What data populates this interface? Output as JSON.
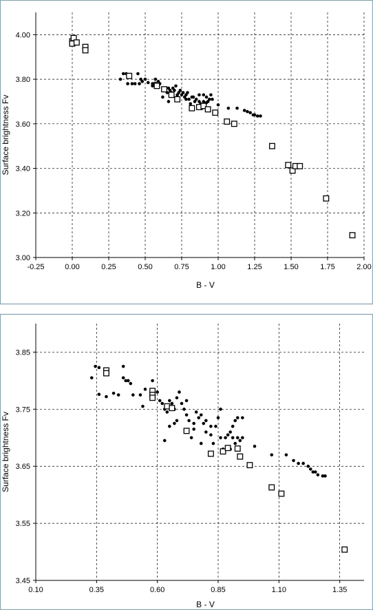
{
  "chart_data": [
    {
      "type": "scatter",
      "title": "",
      "xlabel": "B - V",
      "ylabel": "Surface brightness Fv",
      "xlim": [
        -0.25,
        2.0
      ],
      "ylim": [
        3.0,
        4.1
      ],
      "x_ticks": [
        "-0.25",
        "0.00",
        "0.25",
        "0.50",
        "0.75",
        "1.00",
        "1.25",
        "1.50",
        "1.75",
        "2.00"
      ],
      "y_ticks": [
        "3.00",
        "3.20",
        "3.40",
        "3.60",
        "3.80",
        "4.00"
      ],
      "grid": true,
      "series": [
        {
          "marker": "dot",
          "points": [
            [
              0.33,
              3.8
            ],
            [
              0.35,
              3.825
            ],
            [
              0.37,
              3.825
            ],
            [
              0.4,
              3.82
            ],
            [
              0.45,
              3.825
            ],
            [
              0.47,
              3.8
            ],
            [
              0.48,
              3.79
            ],
            [
              0.5,
              3.8
            ],
            [
              0.38,
              3.78
            ],
            [
              0.41,
              3.78
            ],
            [
              0.43,
              3.78
            ],
            [
              0.46,
              3.78
            ],
            [
              0.52,
              3.785
            ],
            [
              0.55,
              3.78
            ],
            [
              0.57,
              3.8
            ],
            [
              0.58,
              3.77
            ],
            [
              0.6,
              3.78
            ],
            [
              0.62,
              3.76
            ],
            [
              0.63,
              3.75
            ],
            [
              0.64,
              3.76
            ],
            [
              0.65,
              3.74
            ],
            [
              0.66,
              3.76
            ],
            [
              0.67,
              3.75
            ],
            [
              0.68,
              3.74
            ],
            [
              0.7,
              3.75
            ],
            [
              0.72,
              3.73
            ],
            [
              0.73,
              3.74
            ],
            [
              0.75,
              3.73
            ],
            [
              0.77,
              3.72
            ],
            [
              0.78,
              3.73
            ],
            [
              0.8,
              3.71
            ],
            [
              0.82,
              3.72
            ],
            [
              0.84,
              3.7
            ],
            [
              0.85,
              3.71
            ],
            [
              0.87,
              3.7
            ],
            [
              0.88,
              3.69
            ],
            [
              0.9,
              3.7
            ],
            [
              0.91,
              3.69
            ],
            [
              0.92,
              3.72
            ],
            [
              0.93,
              3.7
            ],
            [
              0.95,
              3.73
            ],
            [
              0.96,
              3.71
            ],
            [
              0.66,
              3.7
            ],
            [
              0.72,
              3.72
            ],
            [
              0.78,
              3.71
            ],
            [
              0.81,
              3.69
            ],
            [
              0.86,
              3.68
            ],
            [
              0.89,
              3.67
            ],
            [
              0.62,
              3.72
            ],
            [
              0.69,
              3.76
            ],
            [
              0.74,
              3.75
            ],
            [
              0.83,
              3.72
            ],
            [
              0.92,
              3.695
            ],
            [
              0.94,
              3.71
            ],
            [
              1.0,
              3.685
            ],
            [
              1.07,
              3.67
            ],
            [
              1.13,
              3.67
            ],
            [
              1.18,
              3.66
            ],
            [
              1.22,
              3.65
            ],
            [
              1.24,
              3.64
            ],
            [
              1.25,
              3.64
            ],
            [
              1.27,
              3.635
            ],
            [
              1.29,
              3.635
            ],
            [
              1.2,
              3.655
            ],
            [
              0.55,
              3.77
            ],
            [
              0.59,
              3.79
            ],
            [
              0.71,
              3.77
            ],
            [
              0.76,
              3.74
            ],
            [
              0.79,
              3.74
            ],
            [
              0.87,
              3.73
            ],
            [
              0.9,
              3.73
            ]
          ]
        },
        {
          "marker": "square",
          "points": [
            [
              0.0,
              3.97
            ],
            [
              0.01,
              3.985
            ],
            [
              0.0,
              3.96
            ],
            [
              0.03,
              3.965
            ],
            [
              0.09,
              3.945
            ],
            [
              0.09,
              3.93
            ],
            [
              0.39,
              3.815
            ],
            [
              0.58,
              3.775
            ],
            [
              0.58,
              3.77
            ],
            [
              0.63,
              3.755
            ],
            [
              0.68,
              3.73
            ],
            [
              0.72,
              3.71
            ],
            [
              0.82,
              3.67
            ],
            [
              0.87,
              3.675
            ],
            [
              0.9,
              3.68
            ],
            [
              0.93,
              3.665
            ],
            [
              0.98,
              3.65
            ],
            [
              1.06,
              3.61
            ],
            [
              1.11,
              3.6
            ],
            [
              1.37,
              3.5
            ],
            [
              1.48,
              3.415
            ],
            [
              1.51,
              3.39
            ],
            [
              1.53,
              3.41
            ],
            [
              1.56,
              3.41
            ],
            [
              1.74,
              3.265
            ],
            [
              1.92,
              3.1
            ]
          ]
        }
      ]
    },
    {
      "type": "scatter",
      "title": "",
      "xlabel": "B - V",
      "ylabel": "Surface brightness Fv",
      "xlim": [
        0.1,
        1.45
      ],
      "ylim": [
        3.45,
        3.9
      ],
      "x_ticks": [
        "0.10",
        "0.35",
        "0.60",
        "0.85",
        "1.10",
        "1.35"
      ],
      "y_ticks": [
        "3.45",
        "3.55",
        "3.65",
        "3.75",
        "3.85"
      ],
      "grid": true,
      "series": [
        {
          "marker": "dot",
          "points": [
            [
              0.33,
              3.805
            ],
            [
              0.345,
              3.825
            ],
            [
              0.36,
              3.823
            ],
            [
              0.46,
              3.825
            ],
            [
              0.46,
              3.805
            ],
            [
              0.48,
              3.8
            ],
            [
              0.49,
              3.795
            ],
            [
              0.47,
              3.8
            ],
            [
              0.36,
              3.776
            ],
            [
              0.39,
              3.772
            ],
            [
              0.42,
              3.778
            ],
            [
              0.44,
              3.775
            ],
            [
              0.5,
              3.775
            ],
            [
              0.53,
              3.775
            ],
            [
              0.55,
              3.785
            ],
            [
              0.54,
              3.755
            ],
            [
              0.58,
              3.8
            ],
            [
              0.6,
              3.78
            ],
            [
              0.62,
              3.76
            ],
            [
              0.63,
              3.75
            ],
            [
              0.64,
              3.745
            ],
            [
              0.65,
              3.765
            ],
            [
              0.66,
              3.76
            ],
            [
              0.67,
              3.75
            ],
            [
              0.68,
              3.77
            ],
            [
              0.69,
              3.78
            ],
            [
              0.7,
              3.76
            ],
            [
              0.72,
              3.74
            ],
            [
              0.73,
              3.73
            ],
            [
              0.75,
              3.725
            ],
            [
              0.77,
              3.735
            ],
            [
              0.78,
              3.74
            ],
            [
              0.8,
              3.73
            ],
            [
              0.82,
              3.72
            ],
            [
              0.84,
              3.72
            ],
            [
              0.85,
              3.735
            ],
            [
              0.86,
              3.7
            ],
            [
              0.88,
              3.7
            ],
            [
              0.89,
              3.705
            ],
            [
              0.9,
              3.71
            ],
            [
              0.91,
              3.72
            ],
            [
              0.92,
              3.73
            ],
            [
              0.93,
              3.7
            ],
            [
              0.94,
              3.695
            ],
            [
              0.93,
              3.735
            ],
            [
              0.95,
              3.735
            ],
            [
              0.63,
              3.695
            ],
            [
              0.65,
              3.72
            ],
            [
              0.67,
              3.725
            ],
            [
              0.74,
              3.7
            ],
            [
              0.78,
              3.69
            ],
            [
              0.8,
              3.71
            ],
            [
              0.83,
              3.69
            ],
            [
              0.87,
              3.68
            ],
            [
              0.9,
              3.68
            ],
            [
              0.92,
              3.69
            ],
            [
              0.95,
              3.7
            ],
            [
              1.0,
              3.685
            ],
            [
              1.07,
              3.67
            ],
            [
              1.13,
              3.67
            ],
            [
              1.16,
              3.66
            ],
            [
              1.18,
              3.655
            ],
            [
              1.2,
              3.655
            ],
            [
              1.23,
              3.645
            ],
            [
              1.24,
              3.64
            ],
            [
              1.25,
              3.64
            ],
            [
              1.26,
              3.635
            ],
            [
              1.28,
              3.633
            ],
            [
              1.29,
              3.633
            ],
            [
              1.22,
              3.65
            ],
            [
              0.71,
              3.75
            ],
            [
              0.76,
              3.745
            ],
            [
              0.79,
              3.725
            ],
            [
              0.86,
              3.75
            ],
            [
              0.72,
              3.765
            ],
            [
              0.61,
              3.765
            ],
            [
              0.68,
              3.73
            ],
            [
              0.75,
              3.715
            ],
            [
              0.82,
              3.705
            ],
            [
              0.91,
              3.7
            ]
          ]
        },
        {
          "marker": "square",
          "points": [
            [
              0.39,
              3.818
            ],
            [
              0.39,
              3.813
            ],
            [
              0.58,
              3.782
            ],
            [
              0.58,
              3.775
            ],
            [
              0.58,
              3.77
            ],
            [
              0.64,
              3.755
            ],
            [
              0.66,
              3.752
            ],
            [
              0.72,
              3.712
            ],
            [
              0.82,
              3.672
            ],
            [
              0.87,
              3.676
            ],
            [
              0.89,
              3.682
            ],
            [
              0.93,
              3.681
            ],
            [
              0.94,
              3.667
            ],
            [
              0.98,
              3.652
            ],
            [
              1.07,
              3.613
            ],
            [
              1.11,
              3.602
            ],
            [
              1.37,
              3.504
            ]
          ]
        }
      ]
    }
  ]
}
